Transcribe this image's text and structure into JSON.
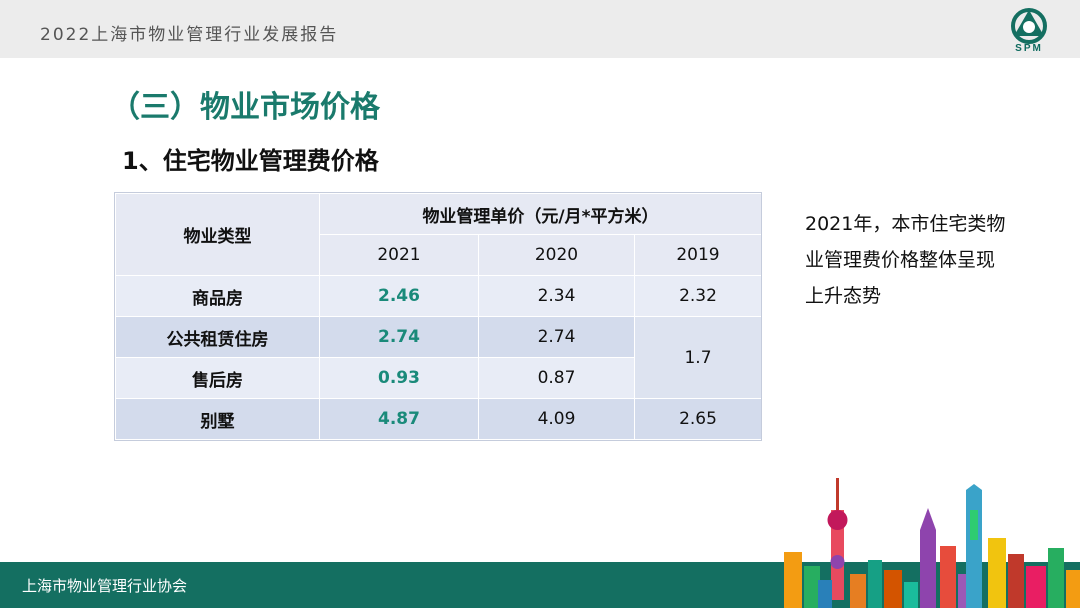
{
  "header": {
    "title": "2022上海市物业管理行业发展报告",
    "logo_text": "SPM"
  },
  "section_title": "（三）物业市场价格",
  "sub_title": "1、住宅物业管理费价格",
  "table": {
    "col_type": "物业类型",
    "col_group": "物业管理单价（元/月*平方米）",
    "years": [
      "2021",
      "2020",
      "2019"
    ],
    "rows": [
      {
        "type": "商品房",
        "y2021": "2.46",
        "y2020": "2.34",
        "y2019": "2.32"
      },
      {
        "type": "公共租赁住房",
        "y2021": "2.74",
        "y2020": "2.74",
        "y2019": "1.7"
      },
      {
        "type": "售后房",
        "y2021": "0.93",
        "y2020": "0.87"
      },
      {
        "type": "别墅",
        "y2021": "4.87",
        "y2020": "4.09",
        "y2019": "2.65"
      }
    ]
  },
  "note": "2021年，本市住宅类物业管理费价格整体呈现上升态势",
  "footer": {
    "text": "上海市物业管理行业协会"
  },
  "colors": {
    "brand_green": "#146f61",
    "highlight": "#1a8a7a"
  }
}
